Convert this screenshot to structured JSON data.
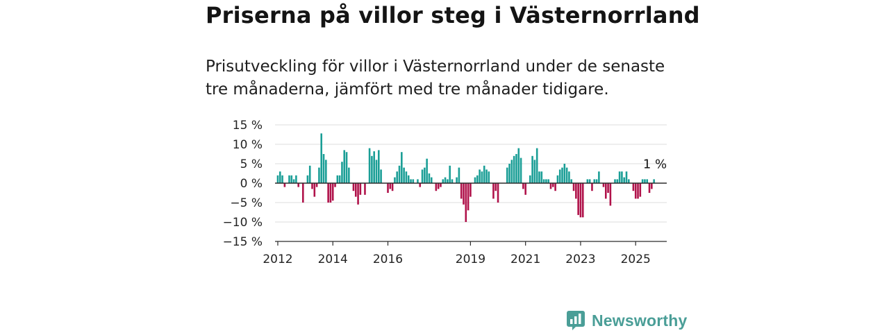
{
  "title": "Priserna på villor steg i Västernorrland",
  "subtitle": "Prisutveckling för villor i Västernorrland under de senaste tre månaderna, jämfört med tre månader tidigare.",
  "brand": {
    "name": "Newsworthy",
    "icon": "newsworthy-logo-icon",
    "color": "#4a9e97"
  },
  "chart_data": {
    "type": "bar",
    "title": "",
    "xlabel": "",
    "ylabel": "",
    "ylim": [
      -15,
      15
    ],
    "yticks": [
      15,
      10,
      5,
      0,
      -5,
      -10,
      -15
    ],
    "ytick_labels": [
      "15 %",
      "10 %",
      "5 %",
      "0 %",
      "−5 %",
      "−10 %",
      "−15 %"
    ],
    "xticks": [
      2012,
      2014,
      2016,
      2019,
      2021,
      2023,
      2025
    ],
    "xtick_labels": [
      "2012",
      "2014",
      "2016",
      "2019",
      "2021",
      "2023",
      "2025"
    ],
    "xlim": [
      2011.9,
      2026.13
    ],
    "grid": true,
    "positive_color": "#1a9e96",
    "negative_color": "#b0124a",
    "annotation": {
      "text": "1 %",
      "x": 2025.5,
      "y": 1
    },
    "series": [
      {
        "x_start": 2012.0,
        "step": 0.083333,
        "values": [
          2,
          3,
          2,
          -1,
          0,
          2,
          2,
          1,
          2,
          -1,
          0,
          -5,
          0,
          2,
          4.5,
          -1.5,
          -3.5,
          -1,
          4,
          12.8,
          7.5,
          6,
          -5,
          -5,
          -4.5,
          -1,
          2,
          2,
          5.5,
          8.5,
          8,
          4,
          0,
          -2,
          -3.5,
          -5.5,
          -3,
          0,
          -3,
          0,
          9,
          7,
          8.2,
          6,
          8.5,
          3.5,
          0,
          0,
          -2.5,
          -1.5,
          -2,
          1.5,
          3,
          4.5,
          8,
          4,
          3,
          2,
          1,
          1,
          0,
          1,
          -1,
          3.5,
          4,
          6.3,
          2.5,
          1.5,
          0,
          -2,
          -1.5,
          -1,
          1,
          1.5,
          1,
          4.5,
          1,
          0,
          1.5,
          4,
          -4,
          -5.5,
          -10,
          -7,
          -3.5,
          0,
          1.5,
          2,
          3.5,
          3,
          4.5,
          3.5,
          3,
          0,
          -4,
          -2,
          -5,
          0,
          0,
          0,
          4,
          5,
          6,
          7,
          7.5,
          9,
          6.5,
          -1.5,
          -3,
          0,
          2,
          7,
          6,
          9,
          3,
          3,
          1,
          1,
          1,
          -1.5,
          -1,
          -2,
          2,
          3.5,
          4,
          5,
          4,
          3,
          1,
          -2,
          -4,
          -8.2,
          -8.8,
          -8.8,
          0,
          1,
          1,
          -2,
          1,
          1,
          3,
          0,
          -1,
          -4,
          -2.5,
          -5.8,
          0,
          1,
          1,
          3,
          3,
          1.5,
          3,
          1,
          0,
          -2,
          -4,
          -4,
          -3.5,
          1,
          1,
          1,
          -2.5,
          -1.5,
          1
        ]
      }
    ]
  }
}
